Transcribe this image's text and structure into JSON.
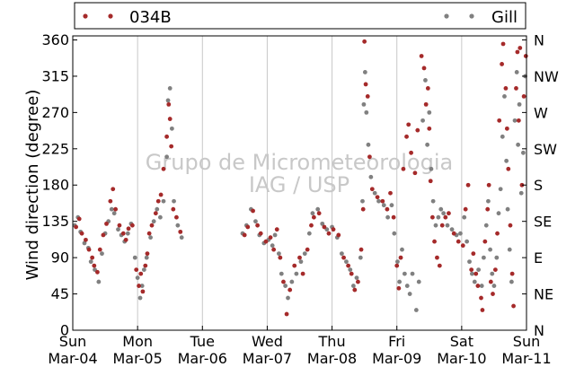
{
  "chart_data": {
    "type": "scatter",
    "ylabel": "Wind direction (degree)",
    "ylim": [
      0,
      365
    ],
    "yticks": [
      0,
      45,
      90,
      135,
      180,
      225,
      270,
      315,
      360
    ],
    "right_ticks": [
      {
        "value": 0,
        "label": "N"
      },
      {
        "value": 45,
        "label": "NE"
      },
      {
        "value": 90,
        "label": "E"
      },
      {
        "value": 135,
        "label": "SE"
      },
      {
        "value": 180,
        "label": "S"
      },
      {
        "value": 225,
        "label": "SW"
      },
      {
        "value": 270,
        "label": "W"
      },
      {
        "value": 315,
        "label": "NW"
      },
      {
        "value": 360,
        "label": "N"
      }
    ],
    "xlim": [
      0,
      7
    ],
    "xticks": [
      {
        "value": 0,
        "day": "Sun",
        "date": "Mar-04"
      },
      {
        "value": 1,
        "day": "Mon",
        "date": "Mar-05"
      },
      {
        "value": 2,
        "day": "Tue",
        "date": "Mar-06"
      },
      {
        "value": 3,
        "day": "Wed",
        "date": "Mar-07"
      },
      {
        "value": 4,
        "day": "Thu",
        "date": "Mar-08"
      },
      {
        "value": 5,
        "day": "Fri",
        "date": "Mar-09"
      },
      {
        "value": 6,
        "day": "Sat",
        "date": "Mar-10"
      },
      {
        "value": 7,
        "day": "Sun",
        "date": "Mar-11"
      }
    ],
    "grid": "vertical",
    "legend_placement": "top",
    "series": [
      {
        "name": "034B",
        "color": "#a52a2a",
        "points": [
          [
            0.05,
            128
          ],
          [
            0.1,
            138
          ],
          [
            0.14,
            120
          ],
          [
            0.2,
            112
          ],
          [
            0.25,
            100
          ],
          [
            0.3,
            90
          ],
          [
            0.33,
            80
          ],
          [
            0.38,
            72
          ],
          [
            0.42,
            100
          ],
          [
            0.47,
            118
          ],
          [
            0.52,
            132
          ],
          [
            0.58,
            160
          ],
          [
            0.62,
            175
          ],
          [
            0.66,
            150
          ],
          [
            0.72,
            130
          ],
          [
            0.78,
            120
          ],
          [
            0.82,
            112
          ],
          [
            0.86,
            126
          ],
          [
            0.92,
            130
          ],
          [
            0.98,
            75
          ],
          [
            1.02,
            55
          ],
          [
            1.05,
            70
          ],
          [
            1.08,
            48
          ],
          [
            1.12,
            80
          ],
          [
            1.15,
            95
          ],
          [
            1.18,
            120
          ],
          [
            1.22,
            130
          ],
          [
            1.28,
            145
          ],
          [
            1.32,
            160
          ],
          [
            1.36,
            168
          ],
          [
            1.4,
            200
          ],
          [
            1.45,
            240
          ],
          [
            1.48,
            280
          ],
          [
            1.5,
            262
          ],
          [
            1.52,
            228
          ],
          [
            1.55,
            150
          ],
          [
            1.6,
            140
          ],
          [
            1.66,
            122
          ],
          [
            2.65,
            118
          ],
          [
            2.7,
            128
          ],
          [
            2.78,
            148
          ],
          [
            2.85,
            130
          ],
          [
            2.9,
            120
          ],
          [
            2.98,
            110
          ],
          [
            3.05,
            115
          ],
          [
            3.1,
            100
          ],
          [
            3.15,
            125
          ],
          [
            3.2,
            90
          ],
          [
            3.25,
            60
          ],
          [
            3.3,
            20
          ],
          [
            3.35,
            50
          ],
          [
            3.42,
            80
          ],
          [
            3.5,
            90
          ],
          [
            3.55,
            70
          ],
          [
            3.62,
            100
          ],
          [
            3.68,
            130
          ],
          [
            3.72,
            140
          ],
          [
            3.8,
            145
          ],
          [
            3.88,
            128
          ],
          [
            3.95,
            120
          ],
          [
            4.02,
            125
          ],
          [
            4.1,
            118
          ],
          [
            4.18,
            90
          ],
          [
            4.25,
            80
          ],
          [
            4.3,
            70
          ],
          [
            4.35,
            50
          ],
          [
            4.4,
            60
          ],
          [
            4.45,
            100
          ],
          [
            4.48,
            150
          ],
          [
            4.5,
            358
          ],
          [
            4.52,
            305
          ],
          [
            4.55,
            290
          ],
          [
            4.58,
            215
          ],
          [
            4.62,
            175
          ],
          [
            4.7,
            165
          ],
          [
            4.78,
            160
          ],
          [
            4.85,
            150
          ],
          [
            4.9,
            170
          ],
          [
            4.95,
            140
          ],
          [
            5.0,
            80
          ],
          [
            5.03,
            52
          ],
          [
            5.06,
            90
          ],
          [
            5.1,
            200
          ],
          [
            5.15,
            240
          ],
          [
            5.18,
            255
          ],
          [
            5.22,
            220
          ],
          [
            5.28,
            195
          ],
          [
            5.32,
            248
          ],
          [
            5.38,
            340
          ],
          [
            5.42,
            325
          ],
          [
            5.45,
            280
          ],
          [
            5.48,
            300
          ],
          [
            5.5,
            250
          ],
          [
            5.52,
            185
          ],
          [
            5.55,
            140
          ],
          [
            5.58,
            110
          ],
          [
            5.62,
            90
          ],
          [
            5.66,
            80
          ],
          [
            5.7,
            130
          ],
          [
            5.75,
            140
          ],
          [
            5.8,
            145
          ],
          [
            5.88,
            120
          ],
          [
            5.95,
            110
          ],
          [
            6.02,
            105
          ],
          [
            6.06,
            150
          ],
          [
            6.1,
            180
          ],
          [
            6.15,
            75
          ],
          [
            6.18,
            95
          ],
          [
            6.22,
            70
          ],
          [
            6.25,
            55
          ],
          [
            6.3,
            40
          ],
          [
            6.32,
            25
          ],
          [
            6.36,
            110
          ],
          [
            6.4,
            150
          ],
          [
            6.42,
            180
          ],
          [
            6.45,
            60
          ],
          [
            6.48,
            45
          ],
          [
            6.52,
            75
          ],
          [
            6.55,
            120
          ],
          [
            6.58,
            260
          ],
          [
            6.62,
            330
          ],
          [
            6.64,
            355
          ],
          [
            6.68,
            300
          ],
          [
            6.7,
            250
          ],
          [
            6.72,
            200
          ],
          [
            6.75,
            130
          ],
          [
            6.78,
            70
          ],
          [
            6.8,
            30
          ],
          [
            6.84,
            300
          ],
          [
            6.86,
            345
          ],
          [
            6.88,
            260
          ],
          [
            6.9,
            350
          ],
          [
            6.93,
            180
          ],
          [
            6.96,
            290
          ],
          [
            6.99,
            340
          ]
        ]
      },
      {
        "name": "Gill",
        "color": "#808080",
        "points": [
          [
            0.03,
            130
          ],
          [
            0.08,
            140
          ],
          [
            0.12,
            122
          ],
          [
            0.18,
            108
          ],
          [
            0.24,
            102
          ],
          [
            0.28,
            85
          ],
          [
            0.34,
            75
          ],
          [
            0.4,
            60
          ],
          [
            0.45,
            95
          ],
          [
            0.5,
            120
          ],
          [
            0.55,
            135
          ],
          [
            0.6,
            150
          ],
          [
            0.64,
            145
          ],
          [
            0.7,
            125
          ],
          [
            0.75,
            118
          ],
          [
            0.8,
            110
          ],
          [
            0.85,
            120
          ],
          [
            0.9,
            132
          ],
          [
            0.96,
            90
          ],
          [
            1.0,
            65
          ],
          [
            1.04,
            40
          ],
          [
            1.07,
            55
          ],
          [
            1.1,
            75
          ],
          [
            1.14,
            90
          ],
          [
            1.2,
            115
          ],
          [
            1.25,
            135
          ],
          [
            1.3,
            150
          ],
          [
            1.35,
            140
          ],
          [
            1.4,
            160
          ],
          [
            1.45,
            215
          ],
          [
            1.47,
            285
          ],
          [
            1.5,
            300
          ],
          [
            1.53,
            250
          ],
          [
            1.56,
            160
          ],
          [
            1.62,
            130
          ],
          [
            1.68,
            115
          ],
          [
            2.62,
            120
          ],
          [
            2.68,
            130
          ],
          [
            2.75,
            150
          ],
          [
            2.82,
            135
          ],
          [
            2.88,
            118
          ],
          [
            2.95,
            108
          ],
          [
            3.02,
            112
          ],
          [
            3.08,
            105
          ],
          [
            3.12,
            118
          ],
          [
            3.18,
            95
          ],
          [
            3.22,
            70
          ],
          [
            3.28,
            55
          ],
          [
            3.32,
            40
          ],
          [
            3.38,
            60
          ],
          [
            3.45,
            70
          ],
          [
            3.52,
            85
          ],
          [
            3.58,
            95
          ],
          [
            3.65,
            120
          ],
          [
            3.7,
            145
          ],
          [
            3.78,
            150
          ],
          [
            3.85,
            132
          ],
          [
            3.92,
            125
          ],
          [
            4.0,
            128
          ],
          [
            4.08,
            115
          ],
          [
            4.15,
            95
          ],
          [
            4.22,
            85
          ],
          [
            4.28,
            75
          ],
          [
            4.33,
            55
          ],
          [
            4.38,
            65
          ],
          [
            4.44,
            90
          ],
          [
            4.47,
            160
          ],
          [
            4.49,
            280
          ],
          [
            4.51,
            320
          ],
          [
            4.53,
            270
          ],
          [
            4.56,
            230
          ],
          [
            4.6,
            190
          ],
          [
            4.66,
            170
          ],
          [
            4.72,
            160
          ],
          [
            4.8,
            155
          ],
          [
            4.86,
            140
          ],
          [
            4.92,
            155
          ],
          [
            4.96,
            120
          ],
          [
            5.01,
            85
          ],
          [
            5.04,
            60
          ],
          [
            5.08,
            100
          ],
          [
            5.12,
            70
          ],
          [
            5.16,
            55
          ],
          [
            5.2,
            45
          ],
          [
            5.24,
            70
          ],
          [
            5.3,
            25
          ],
          [
            5.34,
            60
          ],
          [
            5.4,
            260
          ],
          [
            5.44,
            310
          ],
          [
            5.47,
            230
          ],
          [
            5.5,
            270
          ],
          [
            5.53,
            200
          ],
          [
            5.56,
            160
          ],
          [
            5.6,
            130
          ],
          [
            5.64,
            140
          ],
          [
            5.68,
            150
          ],
          [
            5.72,
            145
          ],
          [
            5.78,
            130
          ],
          [
            5.85,
            125
          ],
          [
            5.92,
            118
          ],
          [
            5.98,
            120
          ],
          [
            6.04,
            140
          ],
          [
            6.08,
            110
          ],
          [
            6.12,
            85
          ],
          [
            6.16,
            70
          ],
          [
            6.2,
            60
          ],
          [
            6.26,
            75
          ],
          [
            6.31,
            55
          ],
          [
            6.34,
            90
          ],
          [
            6.38,
            130
          ],
          [
            6.41,
            160
          ],
          [
            6.44,
            100
          ],
          [
            6.47,
            70
          ],
          [
            6.5,
            55
          ],
          [
            6.54,
            90
          ],
          [
            6.57,
            145
          ],
          [
            6.6,
            175
          ],
          [
            6.63,
            240
          ],
          [
            6.66,
            290
          ],
          [
            6.69,
            210
          ],
          [
            6.71,
            150
          ],
          [
            6.74,
            100
          ],
          [
            6.77,
            60
          ],
          [
            6.82,
            260
          ],
          [
            6.85,
            320
          ],
          [
            6.87,
            230
          ],
          [
            6.89,
            280
          ],
          [
            6.92,
            170
          ],
          [
            6.95,
            220
          ],
          [
            6.98,
            315
          ]
        ]
      }
    ]
  },
  "watermark": {
    "line1": "Grupo de Micrometeorologia",
    "line2": "IAG / USP"
  }
}
